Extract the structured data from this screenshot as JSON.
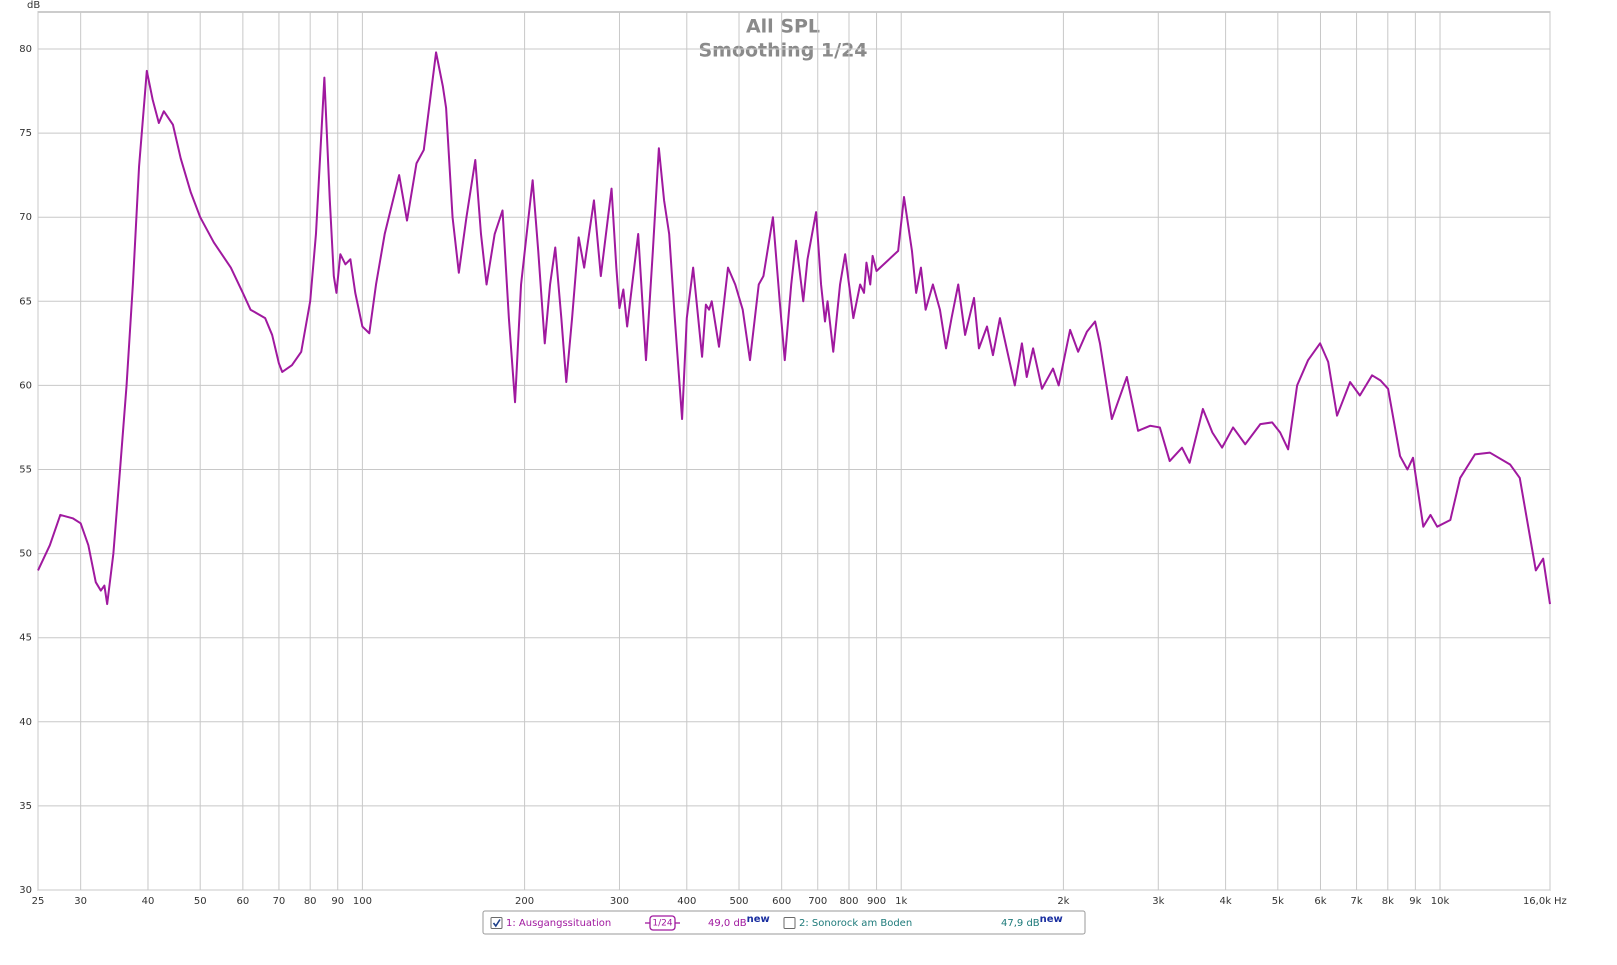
{
  "chart_data": {
    "type": "line",
    "title": "All SPL",
    "subtitle": "Smoothing 1/24",
    "ylabel": "dB",
    "xlabel": "Hz",
    "xscale": "log",
    "grid": true,
    "xlim": [
      25,
      16000
    ],
    "ylim": [
      30,
      82.2
    ],
    "yticks": [
      30,
      35,
      40,
      45,
      50,
      55,
      60,
      65,
      70,
      75,
      80
    ],
    "xticks": [
      25,
      30,
      40,
      50,
      60,
      70,
      80,
      90,
      100,
      200,
      300,
      400,
      500,
      600,
      700,
      800,
      900,
      {
        "value": 1000,
        "label": "1k"
      },
      {
        "value": 2000,
        "label": "2k"
      },
      {
        "value": 3000,
        "label": "3k"
      },
      {
        "value": 4000,
        "label": "4k"
      },
      {
        "value": 5000,
        "label": "5k"
      },
      {
        "value": 6000,
        "label": "6k"
      },
      {
        "value": 7000,
        "label": "7k"
      },
      {
        "value": 8000,
        "label": "8k"
      },
      {
        "value": 9000,
        "label": "9k"
      },
      {
        "value": 10000,
        "label": "10k"
      },
      {
        "value": 16000,
        "label": "16,0k"
      }
    ],
    "x": [
      25,
      26.3,
      27.5,
      29,
      30,
      31,
      32,
      32.7,
      33.2,
      33.6,
      34.5,
      35.5,
      36.5,
      37.5,
      38.5,
      39.8,
      40.8,
      41.9,
      42.8,
      44.5,
      46,
      48,
      50,
      53,
      57,
      60,
      62,
      66,
      68,
      70,
      71,
      74,
      77,
      80,
      82,
      85,
      87,
      88.5,
      89.5,
      91,
      93,
      95,
      97,
      100,
      103,
      106,
      110,
      117,
      121,
      126,
      130,
      137,
      141,
      143,
      147,
      151,
      156,
      162,
      166,
      170,
      176,
      182,
      187,
      192,
      197,
      207,
      212,
      218,
      223,
      228,
      234,
      239,
      245,
      252,
      258,
      269,
      277,
      290,
      296,
      300,
      305,
      310,
      325,
      336,
      346,
      355,
      363,
      371,
      380,
      392,
      400,
      411,
      420,
      427,
      434,
      440,
      445,
      459,
      477,
      492,
      508,
      524,
      544,
      555,
      578,
      595,
      608,
      625,
      638,
      658,
      670,
      695,
      710,
      722,
      730,
      748,
      770,
      787,
      815,
      839,
      853,
      862,
      876,
      885,
      900,
      987,
      1012,
      1047,
      1066,
      1088,
      1110,
      1145,
      1180,
      1211,
      1240,
      1276,
      1314,
      1365,
      1394,
      1443,
      1480,
      1525,
      1625,
      1675,
      1710,
      1757,
      1825,
      1913,
      1960,
      2058,
      2130,
      2212,
      2290,
      2338,
      2460,
      2623,
      2752,
      2897,
      3020,
      3150,
      3320,
      3430,
      3630,
      3780,
      3940,
      4130,
      4350,
      4640,
      4880,
      5050,
      5225,
      5430,
      5690,
      5990,
      6200,
      6440,
      6810,
      7100,
      7480,
      7750,
      8010,
      8430,
      8700,
      8910,
      9310,
      9600,
      9880,
      10450,
      10900,
      11610,
      12380,
      13490,
      14060,
      15060,
      15540,
      16000
    ],
    "series": [
      {
        "name": "1: Ausgangssituation",
        "color": "#a0199f",
        "values": [
          49,
          50.5,
          52.3,
          52.1,
          51.8,
          50.5,
          48.3,
          47.8,
          48.1,
          47,
          50,
          55,
          60,
          66,
          73,
          78.7,
          77,
          75.6,
          76.3,
          75.5,
          73.5,
          71.5,
          70,
          68.5,
          67,
          65.5,
          64.5,
          64,
          63,
          61.3,
          60.8,
          61.2,
          62,
          65,
          69,
          78.3,
          71,
          66.5,
          65.5,
          67.8,
          67.2,
          67.5,
          65.5,
          63.5,
          63.1,
          66,
          69,
          72.5,
          69.8,
          73.2,
          74,
          79.8,
          77.8,
          76.5,
          70,
          66.7,
          70,
          73.4,
          69,
          66,
          69,
          70.4,
          64,
          59,
          66,
          72.2,
          68,
          62.5,
          66,
          68.2,
          64,
          60.2,
          64,
          68.8,
          67,
          71,
          66.5,
          71.7,
          67,
          64.6,
          65.7,
          63.5,
          69,
          61.5,
          68,
          74.1,
          71,
          69,
          64,
          58,
          64,
          67,
          64,
          61.7,
          64.8,
          64.5,
          65,
          62.3,
          67,
          66,
          64.5,
          61.5,
          66,
          66.5,
          70,
          65,
          61.5,
          66,
          68.6,
          65,
          67.5,
          70.3,
          66,
          63.8,
          65,
          62,
          66,
          67.8,
          64,
          66,
          65.5,
          67.3,
          66,
          67.7,
          66.8,
          68,
          71.2,
          68,
          65.5,
          67,
          64.5,
          66,
          64.5,
          62.2,
          64,
          66,
          63,
          65.2,
          62.2,
          63.5,
          61.8,
          64,
          60,
          62.5,
          60.5,
          62.2,
          59.8,
          61,
          60,
          63.3,
          62,
          63.2,
          63.8,
          62.5,
          58,
          60.5,
          57.3,
          57.6,
          57.5,
          55.5,
          56.3,
          55.4,
          58.6,
          57.2,
          56.3,
          57.5,
          56.5,
          57.7,
          57.8,
          57.2,
          56.2,
          60,
          61.5,
          62.5,
          61.4,
          58.2,
          60.2,
          59.4,
          60.6,
          60.3,
          59.8,
          55.8,
          55,
          55.7,
          51.6,
          52.3,
          51.6,
          52,
          54.5,
          55.9,
          56,
          55.3,
          54.5,
          49,
          49.7,
          47
        ]
      }
    ],
    "legend_items": [
      {
        "label": "1: Ausgangssituation",
        "checked": true,
        "color": "#a0199f",
        "smoothing": "1/24",
        "reading": "49,0 dB",
        "badge": "new"
      },
      {
        "label": "2: Sonorock am Boden",
        "checked": false,
        "color": "#1d7a7a",
        "reading": "47,9 dB",
        "badge": "new"
      }
    ]
  }
}
